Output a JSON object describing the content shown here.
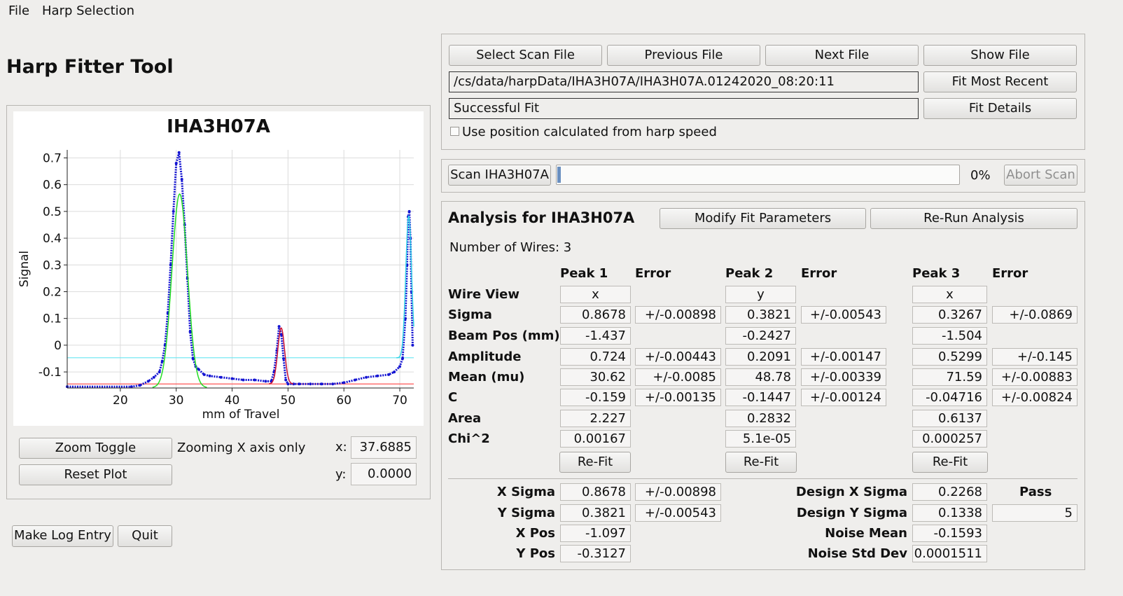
{
  "menu": {
    "file": "File",
    "harp_selection": "Harp Selection"
  },
  "app_title": "Harp Fitter Tool",
  "file_controls": {
    "select_scan_file": "Select Scan File",
    "previous_file": "Previous File",
    "next_file": "Next File",
    "show_file": "Show File",
    "file_path": "/cs/data/harpData/IHA3H07A/IHA3H07A.01242020_08:20:11",
    "fit_most_recent": "Fit Most Recent",
    "status": "Successful Fit",
    "fit_details": "Fit Details",
    "use_position_label": "Use position calculated from harp speed",
    "use_position_checked": false
  },
  "scan": {
    "scan_button": "Scan IHA3H07A",
    "progress_text": "0%",
    "progress_value": 0,
    "abort_button": "Abort Scan"
  },
  "plot_controls": {
    "zoom_toggle": "Zoom Toggle",
    "zoom_status": "Zooming X axis only",
    "reset_plot": "Reset Plot",
    "x_label": "x:",
    "x_value": "37.6885",
    "y_label": "y:",
    "y_value": "0.0000"
  },
  "bottom_buttons": {
    "make_log_entry": "Make Log Entry",
    "quit": "Quit"
  },
  "analysis": {
    "title": "Analysis for IHA3H07A",
    "modify_fit": "Modify Fit Parameters",
    "rerun": "Re-Run Analysis",
    "num_wires": "Number of Wires: 3",
    "headers": {
      "peak1": "Peak 1",
      "peak2": "Peak 2",
      "peak3": "Peak 3",
      "error": "Error"
    },
    "row_labels": {
      "wire_view": "Wire View",
      "sigma": "Sigma",
      "beam_pos": "Beam Pos (mm)",
      "amplitude": "Amplitude",
      "mean": "Mean (mu)",
      "c": "C",
      "area": "Area",
      "chi2": "Chi^2"
    },
    "peak1": {
      "wire_view": "x",
      "sigma": "0.8678",
      "sigma_err": "+/-0.00898",
      "beam_pos": "-1.437",
      "amplitude": "0.724",
      "amplitude_err": "+/-0.00443",
      "mean": "30.62",
      "mean_err": "+/-0.0085",
      "c": "-0.159",
      "c_err": "+/-0.00135",
      "area": "2.227",
      "chi2": "0.00167"
    },
    "peak2": {
      "wire_view": "y",
      "sigma": "0.3821",
      "sigma_err": "+/-0.00543",
      "beam_pos": "-0.2427",
      "amplitude": "0.2091",
      "amplitude_err": "+/-0.00147",
      "mean": "48.78",
      "mean_err": "+/-0.00339",
      "c": "-0.1447",
      "c_err": "+/-0.00124",
      "area": "0.2832",
      "chi2": "5.1e-05"
    },
    "peak3": {
      "wire_view": "x",
      "sigma": "0.3267",
      "sigma_err": "+/-0.0869",
      "beam_pos": "-1.504",
      "amplitude": "0.5299",
      "amplitude_err": "+/-0.145",
      "mean": "71.59",
      "mean_err": "+/-0.00883",
      "c": "-0.04716",
      "c_err": "+/-0.00824",
      "area": "0.6137",
      "chi2": "0.000257"
    },
    "refit": "Re-Fit",
    "summary": {
      "x_sigma_label": "X Sigma",
      "x_sigma": "0.8678",
      "x_sigma_err": "+/-0.00898",
      "y_sigma_label": "Y Sigma",
      "y_sigma": "0.3821",
      "y_sigma_err": "+/-0.00543",
      "x_pos_label": "X Pos",
      "x_pos": "-1.097",
      "y_pos_label": "Y Pos",
      "y_pos": "-0.3127",
      "design_x_sigma_label": "Design X Sigma",
      "design_x_sigma": "0.2268",
      "design_y_sigma_label": "Design Y Sigma",
      "design_y_sigma": "0.1338",
      "noise_mean_label": "Noise Mean",
      "noise_mean": "-0.1593",
      "noise_std_label": "Noise Std Dev",
      "noise_std": "0.0001511",
      "pass_label": "Pass",
      "pass_value": "5"
    }
  },
  "chart_data": {
    "type": "line",
    "title": "IHA3H07A",
    "xlabel": "mm of Travel",
    "ylabel": "Signal",
    "xlim": [
      10.5,
      72.5
    ],
    "ylim": [
      -0.16,
      0.73
    ],
    "xticks": [
      20,
      30,
      40,
      50,
      60,
      70
    ],
    "yticks": [
      -0.1,
      0,
      0.1,
      0.2,
      0.3,
      0.4,
      0.5,
      0.6,
      0.7
    ],
    "grid": true,
    "colors": {
      "data": "#1414d2",
      "fit1": "#22dd22",
      "fit2": "#cc1133",
      "fit3": "#33d3e6",
      "noise": "#66e6f2",
      "baseline": "#ff5555"
    },
    "fits": [
      {
        "amplitude": 0.724,
        "mean": 30.62,
        "sigma": 0.8678,
        "c": -0.159
      },
      {
        "amplitude": 0.2091,
        "mean": 48.78,
        "sigma": 0.3821,
        "c": -0.1447
      },
      {
        "amplitude": 0.5299,
        "mean": 71.59,
        "sigma": 0.3267,
        "c": -0.04716
      }
    ],
    "hlines": [
      -0.047,
      -0.145
    ],
    "series_data": {
      "x": [
        10.5,
        22,
        23.5,
        25,
        26,
        27,
        27.5,
        28,
        28.5,
        29,
        29.5,
        30,
        30.5,
        31,
        31.5,
        32,
        32.5,
        33,
        33.5,
        34,
        35,
        36,
        38,
        40,
        42,
        44,
        46,
        47,
        47.5,
        48,
        48.4,
        48.8,
        49.2,
        49.6,
        50,
        51,
        52,
        54,
        56,
        58,
        60,
        62,
        64,
        66,
        68,
        69,
        70,
        70.5,
        71,
        71.3,
        71.5,
        71.7,
        71.9,
        72.1,
        72.3
      ],
      "y": [
        -0.155,
        -0.155,
        -0.15,
        -0.135,
        -0.12,
        -0.1,
        -0.06,
        0.0,
        0.12,
        0.3,
        0.5,
        0.68,
        0.72,
        0.62,
        0.45,
        0.25,
        0.05,
        -0.05,
        -0.08,
        -0.09,
        -0.11,
        -0.115,
        -0.12,
        -0.125,
        -0.13,
        -0.13,
        -0.135,
        -0.135,
        -0.1,
        -0.02,
        0.07,
        0.04,
        -0.05,
        -0.13,
        -0.145,
        -0.145,
        -0.145,
        -0.145,
        -0.145,
        -0.145,
        -0.14,
        -0.13,
        -0.12,
        -0.115,
        -0.11,
        -0.1,
        -0.08,
        -0.05,
        0.1,
        0.3,
        0.48,
        0.5,
        0.4,
        0.2,
        0.0
      ]
    }
  }
}
